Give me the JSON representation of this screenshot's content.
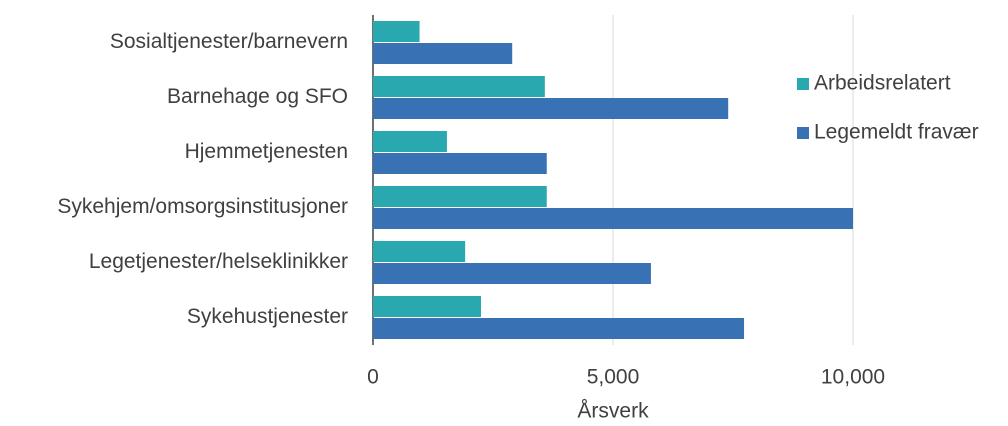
{
  "chart_data": {
    "type": "hbar",
    "xlabel": "Årsverk",
    "categories": [
      "Sosialtjenester/barnevern",
      "Barnehage og SFO",
      "Hjemmetjenesten",
      "Sykehjem/omsorgsinstitusjoner",
      "Legetjenester/helseklinikker",
      "Sykehustjenester"
    ],
    "series": [
      {
        "name": "Arbeidsrelatert",
        "color": "#2aa8b0",
        "values": [
          970,
          3580,
          1540,
          3620,
          1920,
          2250
        ]
      },
      {
        "name": "Legemeldt fravær",
        "color": "#3872b5",
        "values": [
          2900,
          7400,
          3620,
          10000,
          5790,
          7730
        ]
      }
    ],
    "xlim": [
      0,
      10000
    ],
    "xticks": [
      0,
      {
        "value": 5000,
        "label": "5,000"
      },
      {
        "value": 10000,
        "label": "10,000"
      }
    ],
    "grid": true
  }
}
